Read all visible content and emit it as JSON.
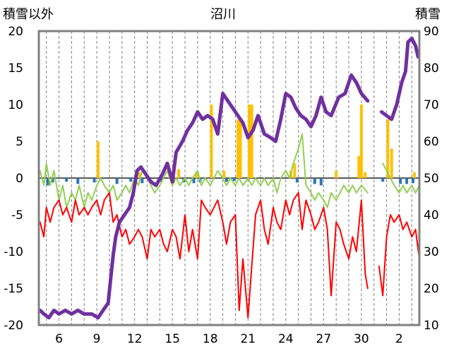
{
  "chart_data": {
    "type": "line",
    "title": "沼川",
    "left_axis_label": "積雪以外",
    "right_axis_label": "積雪",
    "left_ylim": [
      -20,
      20
    ],
    "left_yticks": [
      20,
      15,
      10,
      5,
      0,
      -5,
      -10,
      -15,
      -20
    ],
    "right_ylim": [
      10,
      90
    ],
    "right_yticks": [
      90,
      80,
      70,
      60,
      50,
      40,
      30,
      20,
      10
    ],
    "x_tick_labels": [
      "6",
      "9",
      "12",
      "15",
      "18",
      "21",
      "24",
      "27",
      "30",
      "2"
    ],
    "x_tick_days": [
      6,
      9,
      12,
      15,
      18,
      21,
      24,
      27,
      30,
      33
    ],
    "xlim": [
      4.4,
      34.6
    ],
    "grid": "vertical dashed, daily",
    "series": [
      {
        "color": "#7030a0",
        "axis": "right",
        "role": "snow depth",
        "points": [
          [
            4.5,
            14
          ],
          [
            4.8,
            13
          ],
          [
            5.2,
            12
          ],
          [
            5.6,
            14
          ],
          [
            6,
            13
          ],
          [
            6.5,
            14
          ],
          [
            7,
            13
          ],
          [
            7.5,
            14
          ],
          [
            8,
            13
          ],
          [
            8.6,
            13
          ],
          [
            9.1,
            12
          ],
          [
            9.5,
            14
          ],
          [
            9.9,
            16
          ],
          [
            10.3,
            29
          ],
          [
            10.5,
            34
          ],
          [
            10.8,
            38
          ],
          [
            11.2,
            40
          ],
          [
            11.6,
            42
          ],
          [
            11.9,
            46
          ],
          [
            12.2,
            52
          ],
          [
            12.5,
            53
          ],
          [
            12.9,
            51
          ],
          [
            13.3,
            49
          ],
          [
            13.7,
            48
          ],
          [
            14.2,
            51
          ],
          [
            14.6,
            54
          ],
          [
            15,
            49
          ],
          [
            15.3,
            57
          ],
          [
            15.8,
            60
          ],
          [
            16.2,
            63
          ],
          [
            16.6,
            65
          ],
          [
            17,
            68
          ],
          [
            17.4,
            66
          ],
          [
            17.8,
            67
          ],
          [
            18.2,
            66
          ],
          [
            18.6,
            62
          ],
          [
            19,
            73
          ],
          [
            19.4,
            71
          ],
          [
            19.8,
            69
          ],
          [
            20.2,
            67
          ],
          [
            20.6,
            65
          ],
          [
            21,
            61
          ],
          [
            21.4,
            63
          ],
          [
            21.8,
            67
          ],
          [
            22.3,
            62
          ],
          [
            22.8,
            61
          ],
          [
            23.2,
            60
          ],
          [
            23.6,
            66
          ],
          [
            24,
            73
          ],
          [
            24.4,
            72
          ],
          [
            24.8,
            69
          ],
          [
            25.2,
            67
          ],
          [
            25.6,
            66
          ],
          [
            26,
            64
          ],
          [
            26.4,
            67
          ],
          [
            26.8,
            72
          ],
          [
            27.2,
            68
          ],
          [
            27.6,
            67
          ],
          [
            28.2,
            72
          ],
          [
            28.7,
            73
          ],
          [
            29.2,
            78
          ],
          [
            29.6,
            76
          ],
          [
            30,
            73
          ],
          [
            30.5,
            71
          ],
          [
            31.3,
            null
          ],
          [
            31.6,
            68
          ],
          [
            32,
            67
          ],
          [
            32.4,
            66
          ],
          [
            32.8,
            70
          ],
          [
            33.2,
            76
          ],
          [
            33.5,
            79
          ],
          [
            33.7,
            87
          ],
          [
            34,
            88
          ],
          [
            34.3,
            86
          ],
          [
            34.5,
            83
          ]
        ]
      },
      {
        "color": "#ff0000",
        "axis": "left",
        "points": [
          [
            4.5,
            -6
          ],
          [
            4.8,
            -8
          ],
          [
            5,
            -4
          ],
          [
            5.3,
            -6
          ],
          [
            5.6,
            -4
          ],
          [
            6,
            -3
          ],
          [
            6.3,
            -5
          ],
          [
            6.6,
            -4
          ],
          [
            7,
            -6
          ],
          [
            7.3,
            -3
          ],
          [
            7.6,
            -5
          ],
          [
            8,
            -4
          ],
          [
            8.3,
            -5
          ],
          [
            8.6,
            -4
          ],
          [
            9,
            -3
          ],
          [
            9.3,
            -5
          ],
          [
            9.6,
            -3
          ],
          [
            10,
            -2
          ],
          [
            10.3,
            -6
          ],
          [
            10.6,
            -5
          ],
          [
            11,
            -8
          ],
          [
            11.3,
            -7
          ],
          [
            11.6,
            -9
          ],
          [
            12,
            -8
          ],
          [
            12.3,
            -7
          ],
          [
            12.6,
            -8
          ],
          [
            13,
            -11
          ],
          [
            13.3,
            -7
          ],
          [
            13.6,
            -8
          ],
          [
            14,
            -7
          ],
          [
            14.3,
            -9
          ],
          [
            14.6,
            -10
          ],
          [
            15,
            -7
          ],
          [
            15.3,
            -8
          ],
          [
            15.6,
            -11
          ],
          [
            16,
            -5
          ],
          [
            16.3,
            -10
          ],
          [
            16.6,
            -7
          ],
          [
            17,
            -11
          ],
          [
            17.3,
            -3
          ],
          [
            17.6,
            -4
          ],
          [
            18,
            -5
          ],
          [
            18.3,
            -4
          ],
          [
            18.6,
            -3
          ],
          [
            19,
            -6
          ],
          [
            19.3,
            -9
          ],
          [
            19.6,
            -6
          ],
          [
            20,
            -5
          ],
          [
            20.3,
            -18
          ],
          [
            20.6,
            -11
          ],
          [
            21,
            -19
          ],
          [
            21.3,
            -12
          ],
          [
            21.6,
            -5
          ],
          [
            22,
            -3
          ],
          [
            22.3,
            -7
          ],
          [
            22.6,
            -9
          ],
          [
            23,
            -4
          ],
          [
            23.3,
            -6
          ],
          [
            23.6,
            -7
          ],
          [
            24,
            -3
          ],
          [
            24.3,
            -5
          ],
          [
            24.6,
            -3
          ],
          [
            25,
            -2
          ],
          [
            25.3,
            -7
          ],
          [
            25.6,
            -3
          ],
          [
            26,
            -5
          ],
          [
            26.3,
            -7
          ],
          [
            26.6,
            -6
          ],
          [
            27,
            -4
          ],
          [
            27.3,
            -7
          ],
          [
            27.6,
            -16
          ],
          [
            28,
            -6
          ],
          [
            28.3,
            -7
          ],
          [
            28.6,
            -9
          ],
          [
            29,
            -11
          ],
          [
            29.3,
            -8
          ],
          [
            29.6,
            -10
          ],
          [
            30,
            -3
          ],
          [
            30.3,
            -13
          ],
          [
            30.5,
            -15
          ],
          [
            31.1,
            null
          ],
          [
            31.4,
            -12
          ],
          [
            31.7,
            -16
          ],
          [
            32,
            -8
          ],
          [
            32.3,
            -5
          ],
          [
            32.6,
            -6
          ],
          [
            33,
            -5
          ],
          [
            33.3,
            -7
          ],
          [
            33.6,
            -6
          ],
          [
            34,
            -8
          ],
          [
            34.3,
            -7
          ],
          [
            34.6,
            -11
          ]
        ]
      },
      {
        "color": "#92d050",
        "axis": "left",
        "points": [
          [
            4.5,
            1
          ],
          [
            4.8,
            -1
          ],
          [
            5,
            2
          ],
          [
            5.3,
            -1
          ],
          [
            5.6,
            1
          ],
          [
            6,
            -3
          ],
          [
            6.3,
            -1
          ],
          [
            6.6,
            -4
          ],
          [
            7,
            -2
          ],
          [
            7.3,
            -3
          ],
          [
            7.6,
            -1
          ],
          [
            8,
            -4
          ],
          [
            8.3,
            -2
          ],
          [
            8.6,
            -3
          ],
          [
            9,
            -1
          ],
          [
            9.3,
            0
          ],
          [
            9.6,
            -1
          ],
          [
            10,
            -2
          ],
          [
            10.3,
            -1
          ],
          [
            10.6,
            -3
          ],
          [
            11,
            -2
          ],
          [
            11.3,
            -1
          ],
          [
            11.6,
            -2
          ],
          [
            12,
            0
          ],
          [
            12.3,
            -1
          ],
          [
            12.6,
            1
          ],
          [
            13,
            0
          ],
          [
            13.3,
            -1
          ],
          [
            13.6,
            -2
          ],
          [
            14,
            -1
          ],
          [
            14.3,
            0
          ],
          [
            14.6,
            1
          ],
          [
            15,
            -1
          ],
          [
            15.3,
            0
          ],
          [
            15.6,
            -1
          ],
          [
            16,
            0
          ],
          [
            16.3,
            -1
          ],
          [
            16.6,
            0
          ],
          [
            17,
            1
          ],
          [
            17.3,
            -1
          ],
          [
            17.6,
            0
          ],
          [
            18,
            -1
          ],
          [
            18.3,
            0
          ],
          [
            18.6,
            1
          ],
          [
            19,
            0
          ],
          [
            19.3,
            -1
          ],
          [
            19.6,
            0
          ],
          [
            20,
            -1
          ],
          [
            20.3,
            0
          ],
          [
            20.6,
            -1
          ],
          [
            21,
            0
          ],
          [
            21.3,
            -1
          ],
          [
            21.6,
            0
          ],
          [
            22,
            -1
          ],
          [
            22.3,
            0
          ],
          [
            22.6,
            -1
          ],
          [
            23,
            0
          ],
          [
            23.3,
            -2
          ],
          [
            23.6,
            0
          ],
          [
            24,
            1
          ],
          [
            24.3,
            0
          ],
          [
            24.6,
            2
          ],
          [
            25,
            4
          ],
          [
            25.3,
            6
          ],
          [
            25.6,
            -1
          ],
          [
            26,
            -2
          ],
          [
            26.3,
            -3
          ],
          [
            26.6,
            -2
          ],
          [
            27,
            -3
          ],
          [
            27.3,
            -4
          ],
          [
            27.6,
            -2
          ],
          [
            28,
            -3
          ],
          [
            28.3,
            -2
          ],
          [
            28.6,
            -1
          ],
          [
            29,
            -2
          ],
          [
            29.3,
            -1
          ],
          [
            29.6,
            -2
          ],
          [
            30,
            -1
          ],
          [
            30.5,
            -2
          ],
          [
            31.4,
            null
          ],
          [
            31.7,
            2
          ],
          [
            32,
            1
          ],
          [
            32.3,
            0
          ],
          [
            32.6,
            -1
          ],
          [
            33,
            -2
          ],
          [
            33.3,
            -1
          ],
          [
            33.6,
            -2
          ],
          [
            34,
            -1
          ],
          [
            34.3,
            -2
          ],
          [
            34.6,
            -1
          ]
        ]
      }
    ],
    "bars_up": {
      "color": "#ffc000",
      "axis": "left",
      "items": [
        [
          9.1,
          5
        ],
        [
          12.4,
          0.8
        ],
        [
          14.8,
          0.5
        ],
        [
          15.5,
          1.2
        ],
        [
          16.9,
          0.8
        ],
        [
          18.1,
          10
        ],
        [
          19.1,
          1
        ],
        [
          20.2,
          8
        ],
        [
          20.4,
          8
        ],
        [
          21.1,
          10
        ],
        [
          21.3,
          10
        ],
        [
          24.4,
          1
        ],
        [
          24.7,
          2
        ],
        [
          28,
          1
        ],
        [
          29.8,
          3
        ],
        [
          30,
          10
        ],
        [
          30.3,
          0.8
        ],
        [
          32.1,
          8
        ],
        [
          32.4,
          4
        ],
        [
          34.2,
          0.8
        ]
      ]
    },
    "bars_down": {
      "color": "#2e75b6",
      "axis": "left",
      "items": [
        [
          5.1,
          -1
        ],
        [
          5.5,
          -0.6
        ],
        [
          6.6,
          -0.5
        ],
        [
          7.5,
          -0.8
        ],
        [
          8.8,
          -0.6
        ],
        [
          10.6,
          -0.8
        ],
        [
          11.7,
          -0.5
        ],
        [
          12.6,
          -0.7
        ],
        [
          14.1,
          -0.5
        ],
        [
          15.9,
          -0.6
        ],
        [
          16.7,
          -0.7
        ],
        [
          17.2,
          -0.6
        ],
        [
          19.3,
          -0.5
        ],
        [
          19.9,
          -0.4
        ],
        [
          24.9,
          -0.6
        ],
        [
          26.3,
          -0.8
        ],
        [
          26.8,
          -1
        ],
        [
          31.7,
          -0.5
        ],
        [
          33.1,
          -0.8
        ],
        [
          33.6,
          -0.8
        ],
        [
          34.1,
          -0.7
        ]
      ]
    }
  }
}
